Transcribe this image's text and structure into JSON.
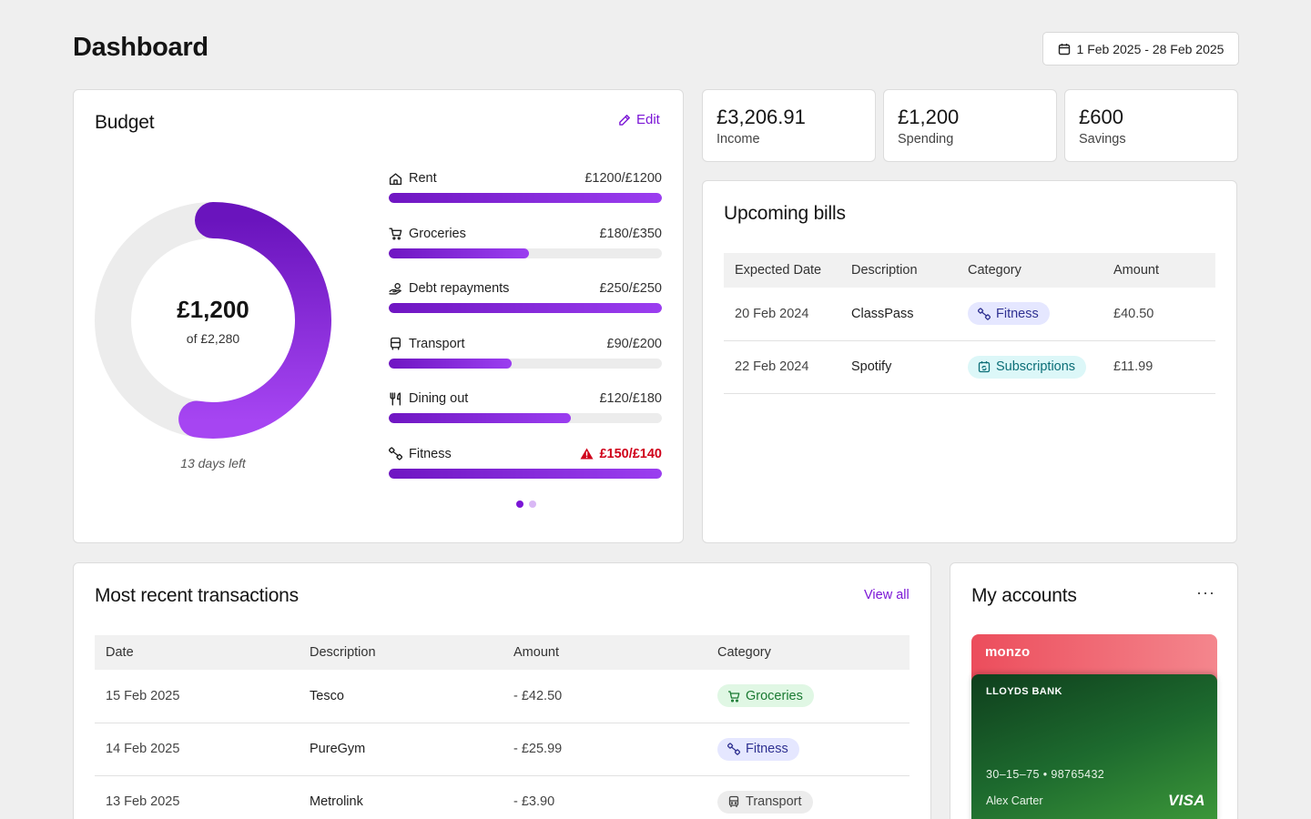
{
  "header": {
    "title": "Dashboard",
    "date_range": "1 Feb 2025 - 28 Feb 2025"
  },
  "budget": {
    "title": "Budget",
    "edit_label": "Edit",
    "spent": "£1,200",
    "of_total": "of £2,280",
    "spent_fraction": 0.526,
    "days_left": "13 days left",
    "pager_active": 1,
    "pager_count": 2,
    "items": [
      {
        "label": "Rent",
        "value": "£1200/£1200",
        "fraction": 1.0,
        "icon": "home-icon",
        "over": false
      },
      {
        "label": "Groceries",
        "value": "£180/£350",
        "fraction": 0.514,
        "icon": "cart-icon",
        "over": false
      },
      {
        "label": "Debt repayments",
        "value": "£250/£250",
        "fraction": 1.0,
        "icon": "hand-coin-icon",
        "over": false
      },
      {
        "label": "Transport",
        "value": "£90/£200",
        "fraction": 0.45,
        "icon": "bus-icon",
        "over": false
      },
      {
        "label": "Dining out",
        "value": "£120/£180",
        "fraction": 0.667,
        "icon": "cutlery-icon",
        "over": false
      },
      {
        "label": "Fitness",
        "value": "£150/£140",
        "fraction": 1.0,
        "icon": "dumbbell-icon",
        "over": true
      }
    ]
  },
  "stats": [
    {
      "value": "£3,206.91",
      "label": "Income"
    },
    {
      "value": "£1,200",
      "label": "Spending"
    },
    {
      "value": "£600",
      "label": "Savings"
    }
  ],
  "bills": {
    "title": "Upcoming bills",
    "columns": [
      "Expected Date",
      "Description",
      "Category",
      "Amount"
    ],
    "rows": [
      {
        "date": "20 Feb 2024",
        "description": "ClassPass",
        "category": "Fitness",
        "amount": "£40.50"
      },
      {
        "date": "22 Feb 2024",
        "description": "Spotify",
        "category": "Subscriptions",
        "amount": "£11.99"
      }
    ]
  },
  "transactions": {
    "title": "Most recent transactions",
    "view_all": "View all",
    "columns": [
      "Date",
      "Description",
      "Amount",
      "Category"
    ],
    "rows": [
      {
        "date": "15 Feb 2025",
        "description": "Tesco",
        "amount": "- £42.50",
        "category": "Groceries"
      },
      {
        "date": "14 Feb 2025",
        "description": "PureGym",
        "amount": "- £25.99",
        "category": "Fitness"
      },
      {
        "date": "13 Feb 2025",
        "description": "Metrolink",
        "amount": "- £3.90",
        "category": "Transport"
      }
    ]
  },
  "accounts": {
    "title": "My accounts",
    "more_label": "···",
    "monzo": {
      "brand": "monzo"
    },
    "lloyds": {
      "bank": "LLOYDS BANK",
      "number": "30–15–75  •  98765432",
      "holder": "Alex Carter",
      "network": "VISA"
    }
  },
  "colors": {
    "accent": "#7b16d6",
    "bar_start": "#6f16c2",
    "bar_end": "#9b3ef0",
    "danger": "#d0021b",
    "monzo": "#ec4d5c",
    "lloyds": "#1d6a2e"
  }
}
